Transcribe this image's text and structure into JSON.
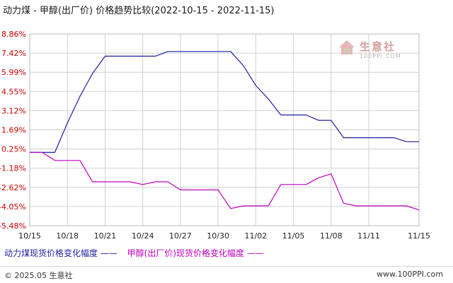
{
  "title": "动力煤 - 甲醇(出厂价) 价格趋势比较(2022-10-15 - 2022-11-15)",
  "watermark": {
    "brand": "生意社",
    "url": "100PPI.COM"
  },
  "legend": {
    "series1": "动力煤现货价格变化幅度 ——",
    "series2": "甲醇(出厂价)现货价格变化幅度 ——"
  },
  "footer": {
    "copyright": "© 2025.05 生意社",
    "url": "www.100PPI.com"
  },
  "colors": {
    "series1": "#1f1fa0",
    "series2": "#c000c0",
    "ytick": "#cc0000",
    "grid": "#d0d0d0"
  },
  "chart_data": {
    "type": "line",
    "x_tick_labels": [
      "10/15",
      "10/18",
      "10/21",
      "10/24",
      "10/27",
      "10/30",
      "11/02",
      "11/05",
      "11/08",
      "11/11",
      "11/15"
    ],
    "y_tick_labels": [
      "8.86%",
      "7.42%",
      "5.99%",
      "4.55%",
      "3.12%",
      "1.69%",
      "0.25%",
      "-1.18%",
      "-2.62%",
      "-4.05%",
      "-5.48%"
    ],
    "ylim": [
      -5.48,
      8.86
    ],
    "xlim": [
      0,
      31
    ],
    "grid": true,
    "legend_position": "bottom",
    "series": [
      {
        "name": "动力煤现货价格变化幅度",
        "points": [
          [
            0,
            0.0
          ],
          [
            1,
            0.0
          ],
          [
            2,
            0.0
          ],
          [
            3,
            2.2
          ],
          [
            4,
            4.2
          ],
          [
            5,
            5.9
          ],
          [
            6,
            7.2
          ],
          [
            7,
            7.2
          ],
          [
            8,
            7.2
          ],
          [
            9,
            7.2
          ],
          [
            10,
            7.2
          ],
          [
            11,
            7.55
          ],
          [
            12,
            7.55
          ],
          [
            13,
            7.55
          ],
          [
            14,
            7.55
          ],
          [
            15,
            7.55
          ],
          [
            16,
            7.55
          ],
          [
            17,
            6.5
          ],
          [
            18,
            5.0
          ],
          [
            19,
            4.0
          ],
          [
            20,
            2.8
          ],
          [
            21,
            2.8
          ],
          [
            22,
            2.8
          ],
          [
            23,
            2.4
          ],
          [
            24,
            2.4
          ],
          [
            25,
            1.1
          ],
          [
            26,
            1.1
          ],
          [
            27,
            1.1
          ],
          [
            28,
            1.1
          ],
          [
            29,
            1.1
          ],
          [
            30,
            0.8
          ],
          [
            31,
            0.8
          ]
        ]
      },
      {
        "name": "甲醇(出厂价)现货价格变化幅度",
        "points": [
          [
            0,
            0.0
          ],
          [
            1,
            0.0
          ],
          [
            2,
            -0.6
          ],
          [
            3,
            -0.6
          ],
          [
            4,
            -0.6
          ],
          [
            5,
            -2.2
          ],
          [
            6,
            -2.2
          ],
          [
            7,
            -2.2
          ],
          [
            8,
            -2.2
          ],
          [
            9,
            -2.4
          ],
          [
            10,
            -2.2
          ],
          [
            11,
            -2.2
          ],
          [
            12,
            -2.8
          ],
          [
            13,
            -2.8
          ],
          [
            14,
            -2.8
          ],
          [
            15,
            -2.8
          ],
          [
            16,
            -4.2
          ],
          [
            17,
            -4.0
          ],
          [
            18,
            -4.0
          ],
          [
            19,
            -4.0
          ],
          [
            20,
            -2.4
          ],
          [
            21,
            -2.4
          ],
          [
            22,
            -2.4
          ],
          [
            23,
            -1.9
          ],
          [
            24,
            -1.6
          ],
          [
            25,
            -3.8
          ],
          [
            26,
            -4.0
          ],
          [
            27,
            -4.0
          ],
          [
            28,
            -4.0
          ],
          [
            29,
            -4.0
          ],
          [
            30,
            -4.0
          ],
          [
            31,
            -4.3
          ]
        ]
      }
    ]
  }
}
